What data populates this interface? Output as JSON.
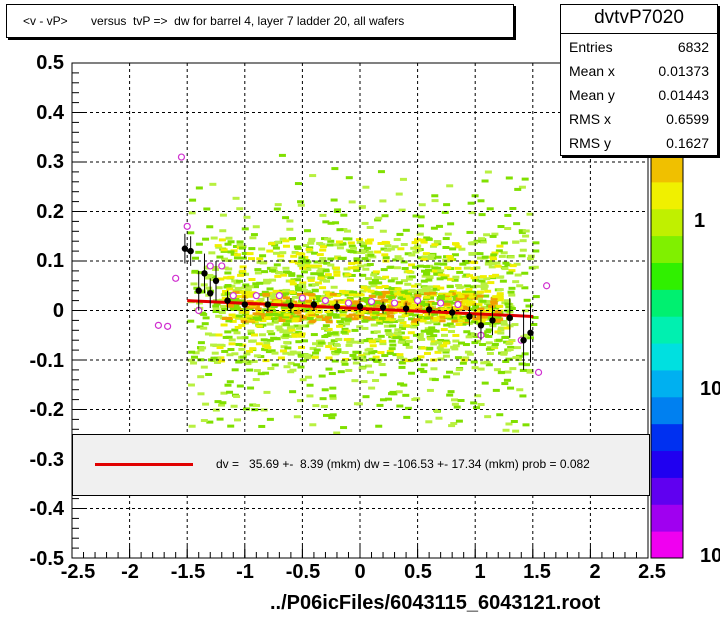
{
  "chart_data": {
    "type": "scatter",
    "title": "<v - vP>       versus  tvP =>  dw for barrel 4, layer 7 ladder 20, all wafers",
    "xlabel": "../P06icFiles/6043115_6043121.root",
    "xlim": [
      -2.5,
      2.5
    ],
    "ylim": [
      -0.5,
      0.5
    ],
    "x_ticks": [
      "-2.5",
      "-2",
      "-1.5",
      "-1",
      "-0.5",
      "0",
      "0.5",
      "1",
      "1.5",
      "2",
      "2.5"
    ],
    "y_ticks": [
      "0.5",
      "0.4",
      "0.3",
      "0.2",
      "0.1",
      "0",
      "-0.1",
      "-0.2",
      "-0.3",
      "-0.4",
      "-0.5"
    ],
    "z_ticks": [
      "1",
      "10",
      "10"
    ],
    "grid": true,
    "stats": {
      "name": "dvtvP7020",
      "rows": [
        {
          "label": "Entries",
          "value": "6832"
        },
        {
          "label": "Mean x",
          "value": "0.01373"
        },
        {
          "label": "Mean y",
          "value": "0.01443"
        },
        {
          "label": "RMS x",
          "value": "0.6599"
        },
        {
          "label": "RMS y",
          "value": "0.1627"
        }
      ]
    },
    "fit_text": "dv =   35.69 +-  8.39 (mkm) dw = -106.53 +- 17.34 (mkm) prob = 0.082",
    "fit_line": {
      "x": [
        -1.5,
        1.5
      ],
      "y": [
        0.02,
        -0.012
      ],
      "color": "#e00000"
    },
    "profile_black": [
      {
        "x": -1.52,
        "y": 0.125,
        "e": 0.03
      },
      {
        "x": -1.47,
        "y": 0.12,
        "e": 0.03
      },
      {
        "x": -1.4,
        "y": 0.04,
        "e": 0.04
      },
      {
        "x": -1.35,
        "y": 0.075,
        "e": 0.04
      },
      {
        "x": -1.3,
        "y": 0.035,
        "e": 0.03
      },
      {
        "x": -1.25,
        "y": 0.06,
        "e": 0.04
      },
      {
        "x": -1.15,
        "y": 0.02,
        "e": 0.02
      },
      {
        "x": -1.0,
        "y": 0.012,
        "e": 0.02
      },
      {
        "x": -0.8,
        "y": 0.012,
        "e": 0.015
      },
      {
        "x": -0.6,
        "y": 0.01,
        "e": 0.015
      },
      {
        "x": -0.4,
        "y": 0.012,
        "e": 0.012
      },
      {
        "x": -0.2,
        "y": 0.008,
        "e": 0.012
      },
      {
        "x": 0.0,
        "y": 0.008,
        "e": 0.012
      },
      {
        "x": 0.2,
        "y": 0.006,
        "e": 0.012
      },
      {
        "x": 0.4,
        "y": 0.004,
        "e": 0.012
      },
      {
        "x": 0.6,
        "y": 0.002,
        "e": 0.012
      },
      {
        "x": 0.8,
        "y": -0.004,
        "e": 0.012
      },
      {
        "x": 0.95,
        "y": -0.012,
        "e": 0.02
      },
      {
        "x": 1.05,
        "y": -0.03,
        "e": 0.03
      },
      {
        "x": 1.15,
        "y": -0.02,
        "e": 0.03
      },
      {
        "x": 1.3,
        "y": -0.015,
        "e": 0.04
      },
      {
        "x": 1.42,
        "y": -0.06,
        "e": 0.06
      },
      {
        "x": 1.48,
        "y": -0.045,
        "e": 0.06
      }
    ],
    "profile_magenta": [
      {
        "x": -1.75,
        "y": -0.03
      },
      {
        "x": -1.67,
        "y": -0.032
      },
      {
        "x": -1.6,
        "y": 0.065
      },
      {
        "x": -1.55,
        "y": 0.31
      },
      {
        "x": -1.5,
        "y": 0.17
      },
      {
        "x": -1.4,
        "y": 0.0
      },
      {
        "x": -1.3,
        "y": 0.09
      },
      {
        "x": -1.2,
        "y": 0.09
      },
      {
        "x": -1.1,
        "y": 0.03
      },
      {
        "x": -0.9,
        "y": 0.03
      },
      {
        "x": -0.7,
        "y": 0.03
      },
      {
        "x": -0.5,
        "y": 0.025
      },
      {
        "x": -0.3,
        "y": 0.02
      },
      {
        "x": -0.1,
        "y": 0.015
      },
      {
        "x": 0.1,
        "y": 0.018
      },
      {
        "x": 0.3,
        "y": 0.015
      },
      {
        "x": 0.5,
        "y": 0.02
      },
      {
        "x": 0.7,
        "y": 0.015
      },
      {
        "x": 0.85,
        "y": 0.012
      },
      {
        "x": 1.05,
        "y": -0.05
      },
      {
        "x": 1.4,
        "y": -0.06
      },
      {
        "x": 1.55,
        "y": -0.125
      },
      {
        "x": 1.62,
        "y": 0.05
      }
    ],
    "scatter_density": [
      {
        "x": [
          -1.5,
          1.5
        ],
        "y": [
          -0.35,
          0.35
        ],
        "level": "low"
      },
      {
        "x": [
          -1.3,
          1.3
        ],
        "y": [
          -0.1,
          0.15
        ],
        "level": "mid"
      },
      {
        "x": [
          -1.2,
          1.2
        ],
        "y": [
          -0.02,
          0.04
        ],
        "level": "high"
      }
    ],
    "palette": {
      "red": "#e00000",
      "magenta": "#d030d0",
      "green_light": "#b8f040",
      "green": "#80e000",
      "yellow": "#f0f000",
      "orange": "#f0a000"
    }
  }
}
